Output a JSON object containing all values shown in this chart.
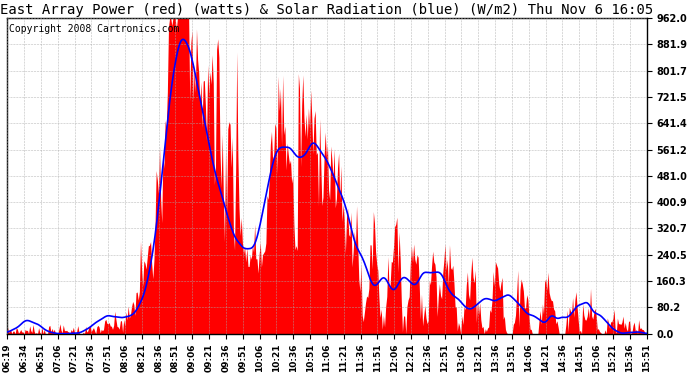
{
  "title": "East Array Power (red) (watts) & Solar Radiation (blue) (W/m2) Thu Nov 6 16:05",
  "copyright": "Copyright 2008 Cartronics.com",
  "ymin": 0.0,
  "ymax": 962.0,
  "yticks": [
    0.0,
    80.2,
    160.3,
    240.5,
    320.7,
    400.9,
    481.0,
    561.2,
    641.4,
    721.5,
    801.7,
    881.9,
    962.0
  ],
  "xtick_labels": [
    "06:19",
    "06:34",
    "06:51",
    "07:06",
    "07:21",
    "07:36",
    "07:51",
    "08:06",
    "08:21",
    "08:36",
    "08:51",
    "09:06",
    "09:21",
    "09:36",
    "09:51",
    "10:06",
    "10:21",
    "10:36",
    "10:51",
    "11:06",
    "11:21",
    "11:36",
    "11:51",
    "12:06",
    "12:21",
    "12:36",
    "12:51",
    "13:06",
    "13:21",
    "13:36",
    "13:51",
    "14:06",
    "14:21",
    "14:36",
    "14:51",
    "15:06",
    "15:21",
    "15:36",
    "15:51"
  ],
  "red_color": "#FF0000",
  "blue_color": "#0000FF",
  "bg_color": "#FFFFFF",
  "grid_color": "#AAAAAA",
  "title_fontsize": 10,
  "copyright_fontsize": 7
}
